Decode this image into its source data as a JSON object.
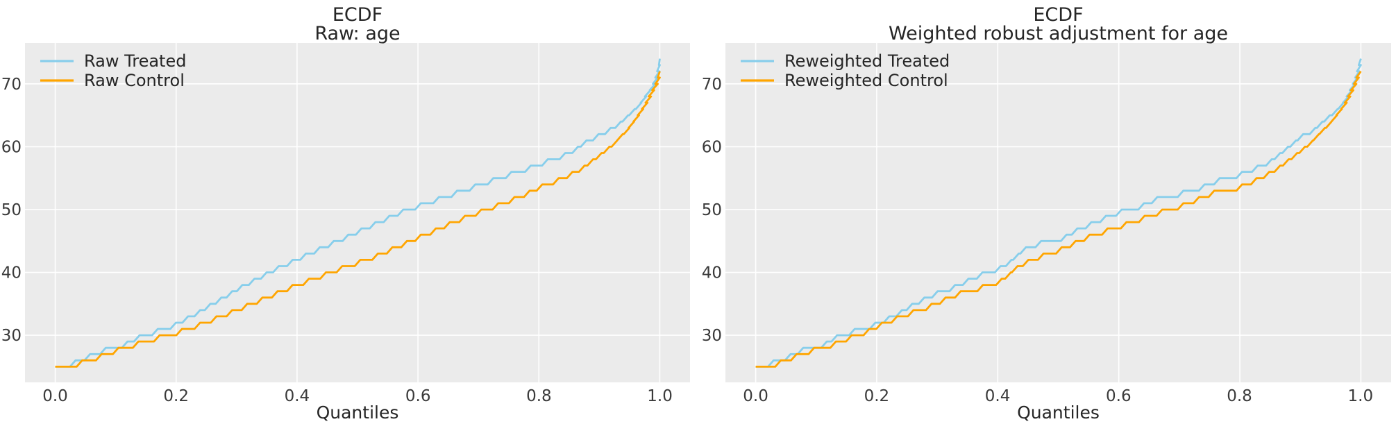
{
  "colors": {
    "figure_bg": "#ffffff",
    "axes_bg": "#ebebeb",
    "grid": "#ffffff",
    "treated": "#87ceeb",
    "control": "#ffa500",
    "text": "#262626"
  },
  "chart_data": [
    {
      "type": "line",
      "subtype": "quantile-step-ecdf",
      "title": [
        "ECDF",
        "Raw: age"
      ],
      "xlabel": "Quantiles",
      "grid": true,
      "legend": {
        "position": "upper-left",
        "entries": [
          {
            "label": "Raw Treated",
            "color": "#87ceeb"
          },
          {
            "label": "Raw Control",
            "color": "#ffa500"
          }
        ]
      },
      "xticks": [
        "0.0",
        "0.2",
        "0.4",
        "0.6",
        "0.8",
        "1.0"
      ],
      "xtick_values": [
        0.0,
        0.2,
        0.4,
        0.6,
        0.8,
        1.0
      ],
      "yticks": [
        "30",
        "40",
        "50",
        "60",
        "70"
      ],
      "ytick_values": [
        30,
        40,
        50,
        60,
        70
      ],
      "xlim": [
        -0.05,
        1.05
      ],
      "ylim": [
        22.5,
        76.5
      ],
      "series": [
        {
          "name": "Raw Treated",
          "color": "#87ceeb",
          "steps": [
            [
              0,
              25
            ],
            [
              0.029,
              26
            ],
            [
              0.053,
              27
            ],
            [
              0.079,
              28
            ],
            [
              0.115,
              29
            ],
            [
              0.135,
              30
            ],
            [
              0.165,
              31
            ],
            [
              0.195,
              32
            ],
            [
              0.215,
              33
            ],
            [
              0.235,
              34
            ],
            [
              0.252,
              35
            ],
            [
              0.27,
              36
            ],
            [
              0.288,
              37
            ],
            [
              0.305,
              38
            ],
            [
              0.325,
              39
            ],
            [
              0.345,
              40
            ],
            [
              0.365,
              41
            ],
            [
              0.388,
              42
            ],
            [
              0.41,
              43
            ],
            [
              0.433,
              44
            ],
            [
              0.456,
              45
            ],
            [
              0.48,
              46
            ],
            [
              0.502,
              47
            ],
            [
              0.525,
              48
            ],
            [
              0.548,
              49
            ],
            [
              0.571,
              50
            ],
            [
              0.6,
              51
            ],
            [
              0.63,
              52
            ],
            [
              0.66,
              53
            ],
            [
              0.69,
              54
            ],
            [
              0.72,
              55
            ],
            [
              0.75,
              56
            ],
            [
              0.782,
              57
            ],
            [
              0.81,
              58
            ],
            [
              0.839,
              59
            ],
            [
              0.86,
              60
            ],
            [
              0.874,
              61
            ],
            [
              0.894,
              62
            ],
            [
              0.914,
              63
            ],
            [
              0.931,
              64
            ],
            [
              0.943,
              65
            ],
            [
              0.954,
              66
            ],
            [
              0.965,
              67
            ],
            [
              0.973,
              68
            ],
            [
              0.98,
              69
            ],
            [
              0.988,
              70
            ],
            [
              0.992,
              71
            ],
            [
              0.995,
              72
            ],
            [
              0.998,
              73
            ],
            [
              1,
              74
            ]
          ]
        },
        {
          "name": "Raw Control",
          "color": "#ffa500",
          "steps": [
            [
              0,
              25
            ],
            [
              0.04,
              26
            ],
            [
              0.072,
              27
            ],
            [
              0.1,
              28
            ],
            [
              0.133,
              29
            ],
            [
              0.168,
              30
            ],
            [
              0.205,
              31
            ],
            [
              0.235,
              32
            ],
            [
              0.262,
              33
            ],
            [
              0.288,
              34
            ],
            [
              0.313,
              35
            ],
            [
              0.338,
              36
            ],
            [
              0.363,
              37
            ],
            [
              0.388,
              38
            ],
            [
              0.415,
              39
            ],
            [
              0.443,
              40
            ],
            [
              0.47,
              41
            ],
            [
              0.5,
              42
            ],
            [
              0.529,
              43
            ],
            [
              0.553,
              44
            ],
            [
              0.577,
              45
            ],
            [
              0.6,
              46
            ],
            [
              0.625,
              47
            ],
            [
              0.648,
              48
            ],
            [
              0.673,
              49
            ],
            [
              0.7,
              50
            ],
            [
              0.728,
              51
            ],
            [
              0.755,
              52
            ],
            [
              0.78,
              53
            ],
            [
              0.801,
              54
            ],
            [
              0.828,
              55
            ],
            [
              0.851,
              56
            ],
            [
              0.871,
              57
            ],
            [
              0.885,
              58
            ],
            [
              0.899,
              59
            ],
            [
              0.912,
              60
            ],
            [
              0.925,
              61
            ],
            [
              0.934,
              62
            ],
            [
              0.945,
              63
            ],
            [
              0.953,
              64
            ],
            [
              0.961,
              65
            ],
            [
              0.968,
              66
            ],
            [
              0.975,
              67
            ],
            [
              0.981,
              68
            ],
            [
              0.986,
              69
            ],
            [
              0.992,
              70
            ],
            [
              0.996,
              71
            ],
            [
              1,
              72
            ]
          ]
        }
      ]
    },
    {
      "type": "line",
      "subtype": "quantile-step-ecdf",
      "title": [
        "ECDF",
        "Weighted robust adjustment for age"
      ],
      "xlabel": "Quantiles",
      "grid": true,
      "legend": {
        "position": "upper-left",
        "entries": [
          {
            "label": "Reweighted Treated",
            "color": "#87ceeb"
          },
          {
            "label": "Reweighted Control",
            "color": "#ffa500"
          }
        ]
      },
      "xticks": [
        "0.0",
        "0.2",
        "0.4",
        "0.6",
        "0.8",
        "1.0"
      ],
      "xtick_values": [
        0.0,
        0.2,
        0.4,
        0.6,
        0.8,
        1.0
      ],
      "yticks": [
        "30",
        "40",
        "50",
        "60",
        "70"
      ],
      "ytick_values": [
        30,
        40,
        50,
        60,
        70
      ],
      "xlim": [
        -0.05,
        1.05
      ],
      "ylim": [
        22.5,
        76.5
      ],
      "series": [
        {
          "name": "Reweighted Treated",
          "color": "#87ceeb",
          "steps": [
            [
              0,
              25
            ],
            [
              0.025,
              26
            ],
            [
              0.053,
              27
            ],
            [
              0.074,
              28
            ],
            [
              0.113,
              29
            ],
            [
              0.13,
              30
            ],
            [
              0.159,
              31
            ],
            [
              0.193,
              32
            ],
            [
              0.216,
              33
            ],
            [
              0.237,
              34
            ],
            [
              0.254,
              35
            ],
            [
              0.274,
              36
            ],
            [
              0.296,
              37
            ],
            [
              0.325,
              38
            ],
            [
              0.347,
              39
            ],
            [
              0.37,
              40
            ],
            [
              0.4,
              41
            ],
            [
              0.418,
              42
            ],
            [
              0.43,
              43
            ],
            [
              0.442,
              44
            ],
            [
              0.467,
              45
            ],
            [
              0.509,
              46
            ],
            [
              0.527,
              47
            ],
            [
              0.55,
              48
            ],
            [
              0.574,
              49
            ],
            [
              0.6,
              50
            ],
            [
              0.637,
              51
            ],
            [
              0.659,
              52
            ],
            [
              0.702,
              53
            ],
            [
              0.737,
              54
            ],
            [
              0.762,
              55
            ],
            [
              0.799,
              56
            ],
            [
              0.825,
              57
            ],
            [
              0.848,
              58
            ],
            [
              0.862,
              59
            ],
            [
              0.875,
              60
            ],
            [
              0.888,
              61
            ],
            [
              0.9,
              62
            ],
            [
              0.92,
              63
            ],
            [
              0.932,
              64
            ],
            [
              0.944,
              65
            ],
            [
              0.957,
              66
            ],
            [
              0.967,
              67
            ],
            [
              0.975,
              68
            ],
            [
              0.981,
              69
            ],
            [
              0.986,
              70
            ],
            [
              0.99,
              71
            ],
            [
              0.993,
              72
            ],
            [
              0.996,
              73
            ],
            [
              1,
              74
            ]
          ]
        },
        {
          "name": "Reweighted Control",
          "color": "#ffa500",
          "steps": [
            [
              0,
              25
            ],
            [
              0.037,
              26
            ],
            [
              0.063,
              27
            ],
            [
              0.092,
              28
            ],
            [
              0.128,
              29
            ],
            [
              0.154,
              30
            ],
            [
              0.183,
              31
            ],
            [
              0.204,
              32
            ],
            [
              0.229,
              33
            ],
            [
              0.256,
              34
            ],
            [
              0.286,
              35
            ],
            [
              0.309,
              36
            ],
            [
              0.334,
              37
            ],
            [
              0.371,
              38
            ],
            [
              0.402,
              39
            ],
            [
              0.417,
              40
            ],
            [
              0.428,
              41
            ],
            [
              0.446,
              42
            ],
            [
              0.471,
              43
            ],
            [
              0.501,
              44
            ],
            [
              0.524,
              45
            ],
            [
              0.547,
              46
            ],
            [
              0.577,
              47
            ],
            [
              0.608,
              48
            ],
            [
              0.638,
              49
            ],
            [
              0.667,
              50
            ],
            [
              0.702,
              51
            ],
            [
              0.728,
              52
            ],
            [
              0.753,
              53
            ],
            [
              0.799,
              54
            ],
            [
              0.823,
              55
            ],
            [
              0.844,
              56
            ],
            [
              0.862,
              57
            ],
            [
              0.876,
              58
            ],
            [
              0.89,
              59
            ],
            [
              0.903,
              60
            ],
            [
              0.916,
              61
            ],
            [
              0.926,
              62
            ],
            [
              0.936,
              63
            ],
            [
              0.947,
              64
            ],
            [
              0.956,
              65
            ],
            [
              0.964,
              66
            ],
            [
              0.972,
              67
            ],
            [
              0.978,
              68
            ],
            [
              0.983,
              69
            ],
            [
              0.988,
              70
            ],
            [
              0.992,
              71
            ],
            [
              0.997,
              72
            ]
          ]
        }
      ]
    }
  ]
}
